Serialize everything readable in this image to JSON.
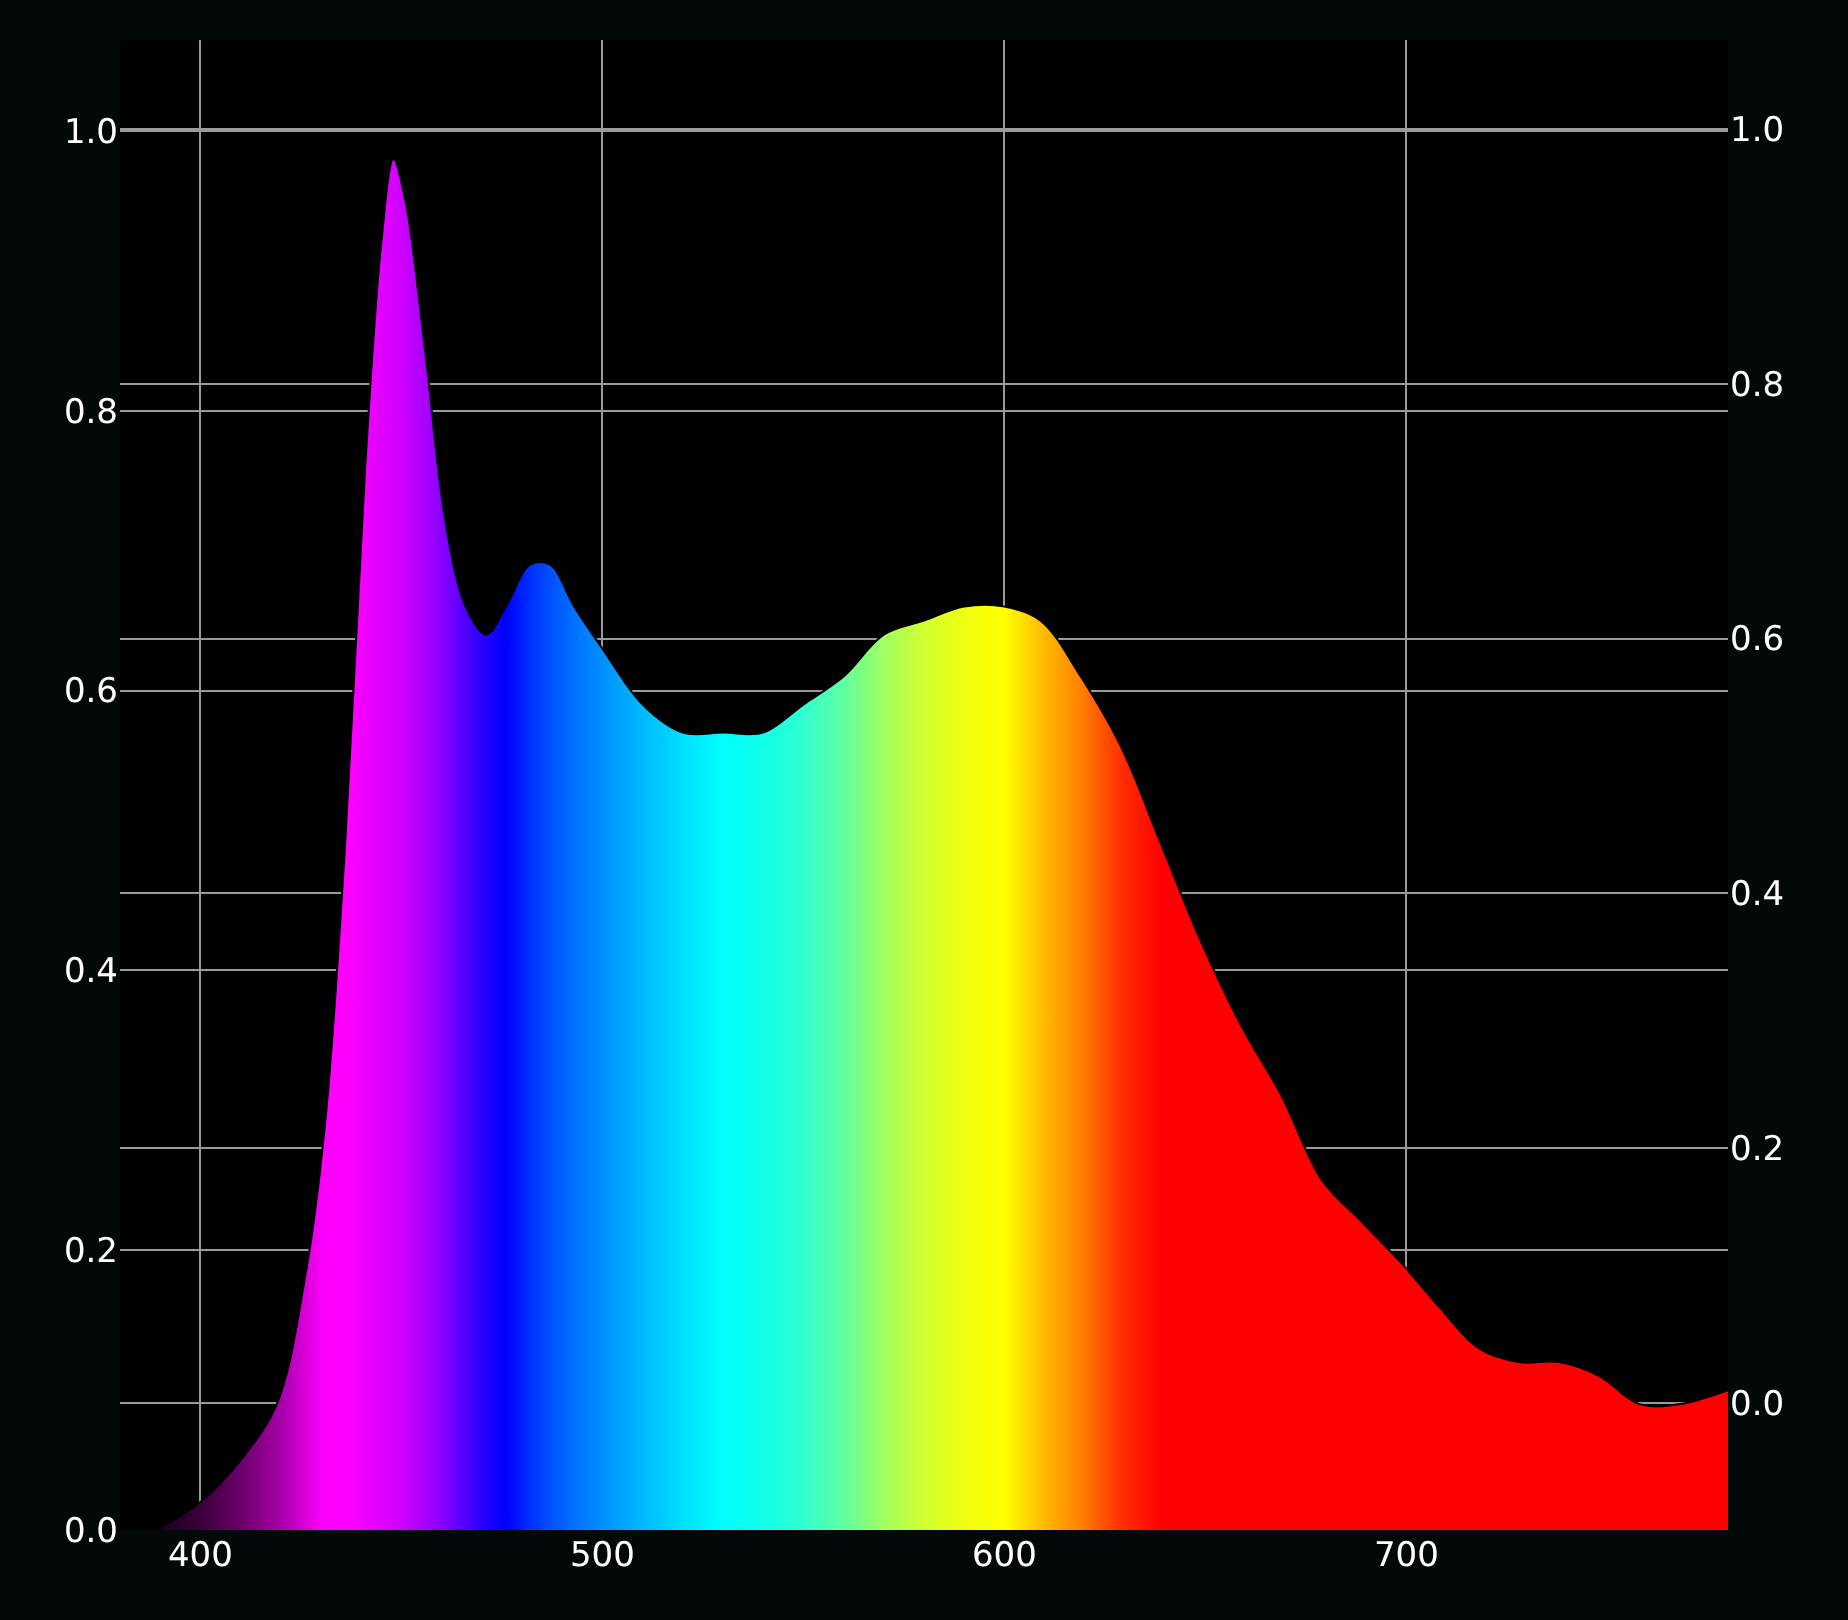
{
  "chart_data": {
    "type": "area",
    "x": [
      389,
      400,
      410,
      419,
      426,
      431,
      436,
      441,
      445,
      448,
      451,
      456,
      461,
      466,
      471,
      476,
      482,
      487,
      493,
      500,
      510,
      520,
      530,
      540,
      550,
      560,
      570,
      580,
      590,
      600,
      609,
      619,
      629,
      639,
      649,
      659,
      669,
      679,
      689,
      699,
      708,
      718,
      728,
      738,
      748,
      758,
      768,
      780
    ],
    "series": [
      {
        "values": [
          0,
          0.02,
          0.05,
          0.09,
          0.18,
          0.29,
          0.49,
          0.76,
          0.92,
          0.98,
          0.95,
          0.84,
          0.72,
          0.66,
          0.64,
          0.66,
          0.69,
          0.69,
          0.66,
          0.63,
          0.59,
          0.57,
          0.57,
          0.57,
          0.59,
          0.61,
          0.64,
          0.65,
          0.66,
          0.66,
          0.65,
          0.61,
          0.56,
          0.49,
          0.42,
          0.36,
          0.31,
          0.25,
          0.22,
          0.19,
          0.16,
          0.13,
          0.12,
          0.12,
          0.11,
          0.09,
          0.09,
          0.1
        ],
        "colors": [
          "#180018",
          "#3a003a",
          "#6a006a",
          "#a000a0",
          "#d800d8",
          "#ff00ff",
          "#ff00ff",
          "#f000ff",
          "#e000ff",
          "#d800ff",
          "#c800ff",
          "#a800ff",
          "#8000ff",
          "#5000ff",
          "#2000ff",
          "#0000ff",
          "#0030ff",
          "#0050ff",
          "#0070ff",
          "#0090ff",
          "#00b8ff",
          "#00e0ff",
          "#00ffff",
          "#10ffe8",
          "#30ffd0",
          "#60ffa0",
          "#a0ff60",
          "#d0ff30",
          "#f0ff10",
          "#ffff00",
          "#ffc000",
          "#ff8000",
          "#ff3000",
          "#ff0000",
          "#ff0000",
          "#ff0000",
          "#ff0000",
          "#ff0000",
          "#ff0000",
          "#ff0000",
          "#ff0000",
          "#ff0000",
          "#ff0000",
          "#ff0000",
          "#ff0000",
          "#ff0000",
          "#ff0000",
          "#ff0000"
        ]
      }
    ],
    "xlim": [
      380,
      780
    ],
    "xticks": [
      400,
      500,
      600,
      700
    ],
    "ylim": [
      0,
      1.065
    ],
    "yticks": [
      {
        "value": 0,
        "label": "0.0"
      },
      {
        "value": 0.2,
        "label": "0.2"
      },
      {
        "value": 0.4,
        "label": "0.4"
      },
      {
        "value": 0.6,
        "label": "0.6"
      },
      {
        "value": 0.8,
        "label": "0.8"
      },
      {
        "value": 1,
        "label": "1.0"
      }
    ],
    "y2lim": [
      -0.1,
      1.07
    ],
    "y2ticks": [
      {
        "value": 0,
        "label": "0.0"
      },
      {
        "value": 0.2,
        "label": "0.2"
      },
      {
        "value": 0.4,
        "label": "0.4"
      },
      {
        "value": 0.6,
        "label": "0.6"
      },
      {
        "value": 0.8,
        "label": "0.8"
      },
      {
        "value": 1,
        "label": "1.0"
      }
    ],
    "grid": true
  }
}
